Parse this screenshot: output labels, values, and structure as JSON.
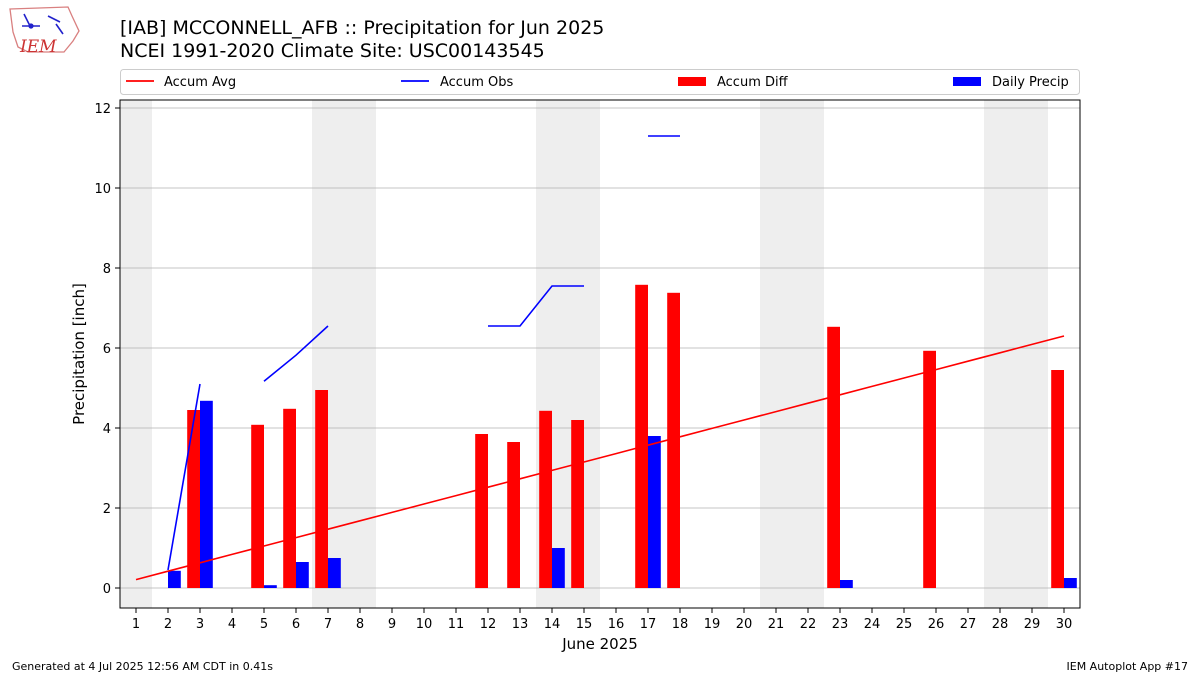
{
  "header": {
    "title_line1": "[IAB] MCCONNELL_AFB :: Precipitation for Jun 2025",
    "title_line2": "NCEI 1991-2020 Climate Site: USC00143545"
  },
  "logo": {
    "text": "IEM",
    "icon": "iowa-state-outline-logo"
  },
  "legend": {
    "placement": "top",
    "items": [
      {
        "label": "Accum Avg",
        "kind": "line",
        "color": "#ff0000"
      },
      {
        "label": "Accum Obs",
        "kind": "line",
        "color": "#0000ff"
      },
      {
        "label": "Accum Diff",
        "kind": "bar",
        "color": "#ff0000"
      },
      {
        "label": "Daily Precip",
        "kind": "bar",
        "color": "#0000ff"
      }
    ]
  },
  "footer": {
    "left": "Generated at 4 Jul 2025 12:56 AM CDT in 0.41s",
    "right": "IEM Autoplot App #17"
  },
  "chart_data": {
    "type": "bar",
    "xlabel": "June 2025",
    "ylabel": "Precipitation [inch]",
    "xlim": [
      0.5,
      30.5
    ],
    "ylim": [
      -0.5,
      12.2
    ],
    "x_ticks": [
      1,
      2,
      3,
      4,
      5,
      6,
      7,
      8,
      9,
      10,
      11,
      12,
      13,
      14,
      15,
      16,
      17,
      18,
      19,
      20,
      21,
      22,
      23,
      24,
      25,
      26,
      27,
      28,
      29,
      30
    ],
    "y_ticks": [
      0,
      2,
      4,
      6,
      8,
      10,
      12
    ],
    "grid": "horizontal",
    "weekend_shading": [
      [
        0.5,
        1.5
      ],
      [
        6.5,
        8.5
      ],
      [
        13.5,
        15.5
      ],
      [
        20.5,
        22.5
      ],
      [
        27.5,
        29.5
      ]
    ],
    "colors": {
      "avg": "#ff0000",
      "obs": "#0000ff",
      "diff": "#ff0000",
      "daily": "#0000ff",
      "shade": "#eeeeee",
      "grid": "#b0b0b0"
    },
    "accum_avg": [
      [
        1,
        0.21
      ],
      [
        2,
        0.42
      ],
      [
        3,
        0.63
      ],
      [
        4,
        0.84
      ],
      [
        5,
        1.05
      ],
      [
        6,
        1.26
      ],
      [
        7,
        1.47
      ],
      [
        8,
        1.68
      ],
      [
        9,
        1.89
      ],
      [
        10,
        2.1
      ],
      [
        11,
        2.31
      ],
      [
        12,
        2.52
      ],
      [
        13,
        2.73
      ],
      [
        14,
        2.94
      ],
      [
        15,
        3.15
      ],
      [
        16,
        3.36
      ],
      [
        17,
        3.57
      ],
      [
        18,
        3.78
      ],
      [
        19,
        3.99
      ],
      [
        20,
        4.2
      ],
      [
        21,
        4.41
      ],
      [
        22,
        4.62
      ],
      [
        23,
        4.83
      ],
      [
        24,
        5.04
      ],
      [
        25,
        5.25
      ],
      [
        26,
        5.46
      ],
      [
        27,
        5.67
      ],
      [
        28,
        5.88
      ],
      [
        29,
        6.09
      ],
      [
        30,
        6.3
      ]
    ],
    "accum_obs_segments": [
      [
        [
          2,
          0.45
        ],
        [
          3,
          5.1
        ]
      ],
      [
        [
          5,
          5.17
        ],
        [
          6,
          5.82
        ],
        [
          7,
          6.55
        ]
      ],
      [
        [
          12,
          6.55
        ],
        [
          13,
          6.55
        ],
        [
          14,
          7.55
        ],
        [
          15,
          7.55
        ]
      ],
      [
        [
          17,
          11.3
        ],
        [
          18,
          11.3
        ]
      ]
    ],
    "accum_diff": [
      [
        3,
        4.45
      ],
      [
        5,
        4.08
      ],
      [
        6,
        4.48
      ],
      [
        7,
        4.95
      ],
      [
        12,
        3.85
      ],
      [
        13,
        3.65
      ],
      [
        14,
        4.43
      ],
      [
        15,
        4.2
      ],
      [
        17,
        7.58
      ],
      [
        18,
        7.38
      ],
      [
        23,
        6.53
      ],
      [
        26,
        5.93
      ],
      [
        30,
        5.45
      ]
    ],
    "daily_precip": [
      [
        2,
        0.43
      ],
      [
        3,
        4.68
      ],
      [
        5,
        0.07
      ],
      [
        6,
        0.65
      ],
      [
        7,
        0.75
      ],
      [
        14,
        1.0
      ],
      [
        17,
        3.8
      ],
      [
        23,
        0.2
      ],
      [
        30,
        0.25
      ]
    ]
  }
}
